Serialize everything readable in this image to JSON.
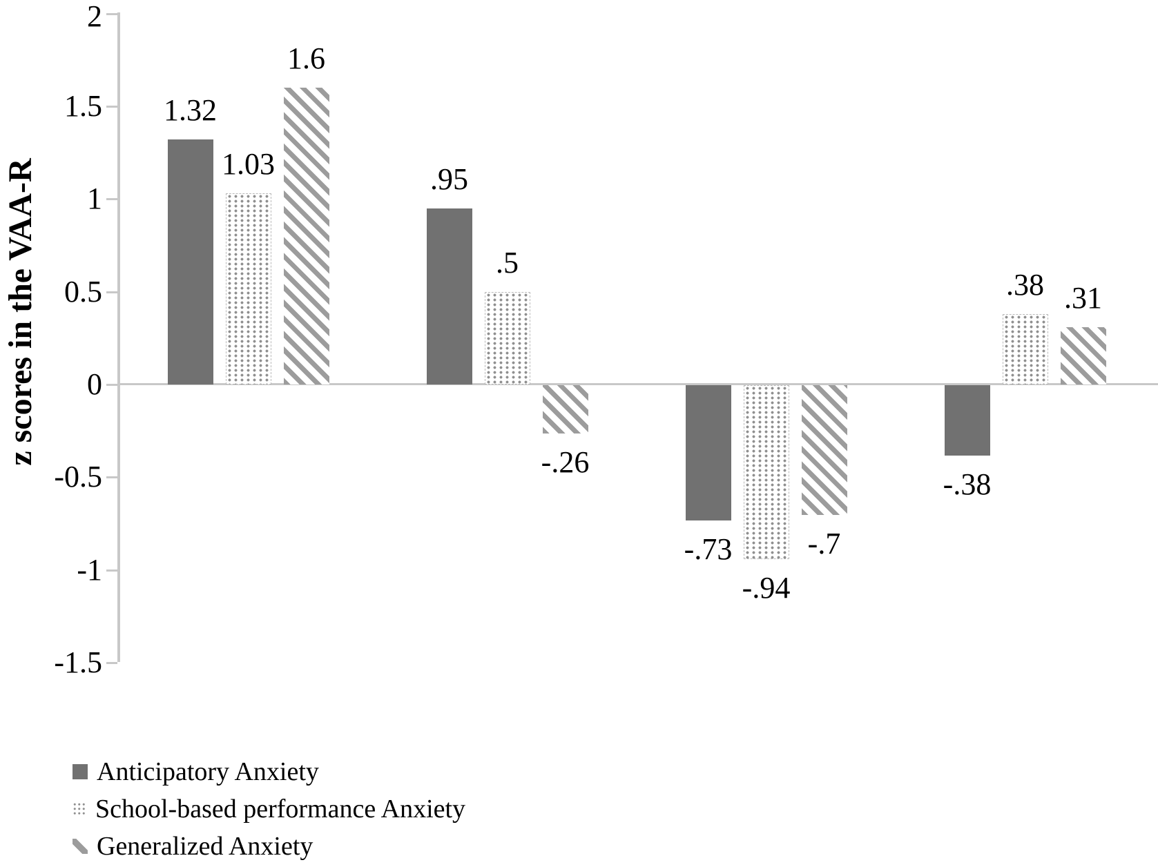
{
  "chart_data": {
    "type": "bar",
    "title": "",
    "xlabel": "",
    "ylabel": "z scores in the VAA-R",
    "ylim": [
      -1.5,
      2
    ],
    "grid": false,
    "legend_position": "bottom-left",
    "yticks": [
      {
        "value": 2,
        "label": "2"
      },
      {
        "value": 1.5,
        "label": "1.5"
      },
      {
        "value": 1,
        "label": "1"
      },
      {
        "value": 0.5,
        "label": "0.5"
      },
      {
        "value": 0,
        "label": "0"
      },
      {
        "value": -0.5,
        "label": "-0.5"
      },
      {
        "value": -1,
        "label": "-1"
      },
      {
        "value": -1.5,
        "label": "-1.5"
      }
    ],
    "series": [
      {
        "name": "Anticipatory Anxiety",
        "pattern": "solid",
        "values": [
          1.32,
          0.95,
          -0.73,
          -0.38
        ],
        "data_labels": [
          "1.32",
          ".95",
          "-.73",
          "-.38"
        ]
      },
      {
        "name": "School-based performance Anxiety",
        "pattern": "dotted",
        "values": [
          1.03,
          0.5,
          -0.94,
          0.38
        ],
        "data_labels": [
          "1.03",
          ".5",
          "-.94",
          ".38"
        ]
      },
      {
        "name": "Generalized Anxiety",
        "pattern": "diagonal-stripes",
        "values": [
          1.6,
          -0.26,
          -0.7,
          0.31
        ],
        "data_labels": [
          "1.6",
          "-.26",
          "-.7",
          ".31"
        ]
      }
    ],
    "colors": {
      "solid_bar": "#717171",
      "stripe_gray": "#9c9c9c",
      "dot_gray": "#909090",
      "axis_line": "#c8c8c8",
      "label_text": "#000000"
    }
  }
}
